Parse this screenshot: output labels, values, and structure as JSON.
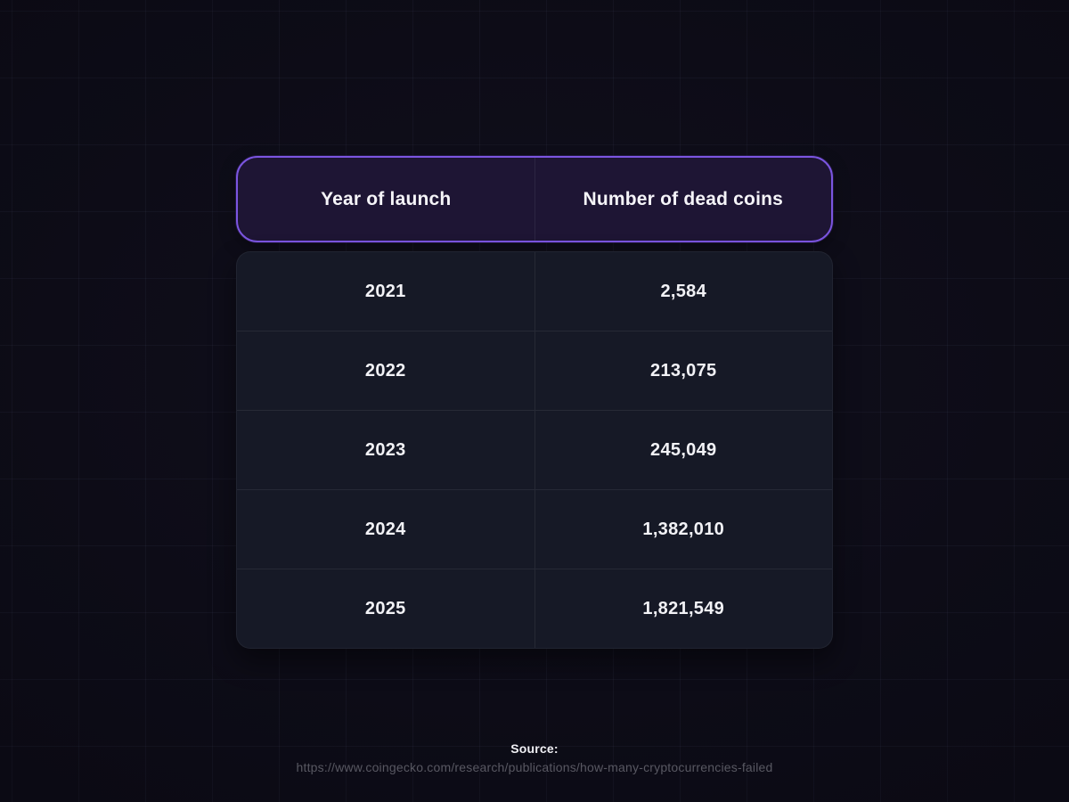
{
  "table": {
    "columns": [
      {
        "label": "Year of launch"
      },
      {
        "label": "Number of dead coins"
      }
    ],
    "rows": [
      {
        "year": "2021",
        "count": "2,584"
      },
      {
        "year": "2022",
        "count": "213,075"
      },
      {
        "year": "2023",
        "count": "245,049"
      },
      {
        "year": "2024",
        "count": "1,382,010"
      },
      {
        "year": "2025",
        "count": "1,821,549"
      }
    ]
  },
  "source": {
    "label": "Source:",
    "url": "https://www.coingecko.com/research/publications/how-many-cryptocurrencies-failed"
  },
  "colors": {
    "page_background": "#0d0c17",
    "grid_line": "rgba(140,150,190,0.06)",
    "header_background": "#1e1534",
    "header_border": "#7b55e0",
    "body_background": "#161926",
    "divider": "rgba(255,255,255,0.07)",
    "text": "#f2f2f6",
    "source_url_text": "#585862"
  },
  "chart_data": {
    "type": "table",
    "title": "",
    "columns": [
      "Year of launch",
      "Number of dead coins"
    ],
    "categories": [
      "2021",
      "2022",
      "2023",
      "2024",
      "2025"
    ],
    "values": [
      2584,
      213075,
      245049,
      1382010,
      1821549
    ],
    "source": "https://www.coingecko.com/research/publications/how-many-cryptocurrencies-failed"
  }
}
